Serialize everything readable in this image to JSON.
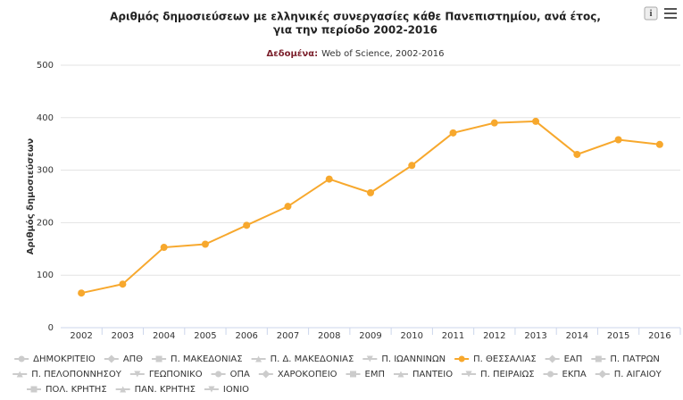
{
  "chart_data": {
    "type": "line",
    "title": [
      "Αριθμός δημοσιεύσεων με ελληνικές συνεργασίες κάθε Πανεπιστημίου, ανά έτος,",
      "για την περίοδο 2002-2016"
    ],
    "subtitle_label": "Δεδομένα:",
    "subtitle": "Web of Science, 2002-2016",
    "y_label": "Αριθμός δημοσιεύσεων",
    "categories": [
      "2002",
      "2003",
      "2004",
      "2005",
      "2006",
      "2007",
      "2008",
      "2009",
      "2010",
      "2011",
      "2012",
      "2013",
      "2014",
      "2015",
      "2016"
    ],
    "ylim": [
      0,
      500
    ],
    "yticks": [
      0,
      100,
      200,
      300,
      400,
      500
    ],
    "grid": true,
    "hidden_color": "#cccccc",
    "series": [
      {
        "name": "ΔΗΜΟΚΡΙΤΕΙΟ",
        "visible": false
      },
      {
        "name": "ΑΠΘ",
        "visible": false
      },
      {
        "name": "Π. ΜΑΚΕΔΟΝΙΑΣ",
        "visible": false
      },
      {
        "name": "Π. Δ. ΜΑΚΕΔΟΝΙΑΣ",
        "visible": false
      },
      {
        "name": "Π. ΙΩΑΝΝΙΝΩΝ",
        "visible": false
      },
      {
        "name": "Π. ΘΕΣΣΑΛΙΑΣ",
        "visible": true,
        "color": "#f7a82d",
        "values": [
          66,
          83,
          153,
          159,
          195,
          231,
          283,
          257,
          309,
          371,
          390,
          393,
          330,
          358,
          349
        ]
      },
      {
        "name": "ΕΑΠ",
        "visible": false
      },
      {
        "name": "Π. ΠΑΤΡΩΝ",
        "visible": false
      },
      {
        "name": "Π. ΠΕΛΟΠΟΝΝΗΣΟΥ",
        "visible": false
      },
      {
        "name": "ΓΕΩΠΟΝΙΚΟ",
        "visible": false
      },
      {
        "name": "ΟΠΑ",
        "visible": false
      },
      {
        "name": "ΧΑΡΟΚΟΠΕΙΟ",
        "visible": false
      },
      {
        "name": "ΕΜΠ",
        "visible": false
      },
      {
        "name": "ΠΑΝΤΕΙΟ",
        "visible": false
      },
      {
        "name": "Π. ΠΕΙΡΑΙΩΣ",
        "visible": false
      },
      {
        "name": "ΕΚΠΑ",
        "visible": false
      },
      {
        "name": "Π. ΑΙΓΑΙΟΥ",
        "visible": false
      },
      {
        "name": "ΠΟΛ. ΚΡΗΤΗΣ",
        "visible": false
      },
      {
        "name": "ΠΑΝ. ΚΡΗΤΗΣ",
        "visible": false
      },
      {
        "name": "ΙΟΝΙΟ",
        "visible": false
      }
    ]
  }
}
